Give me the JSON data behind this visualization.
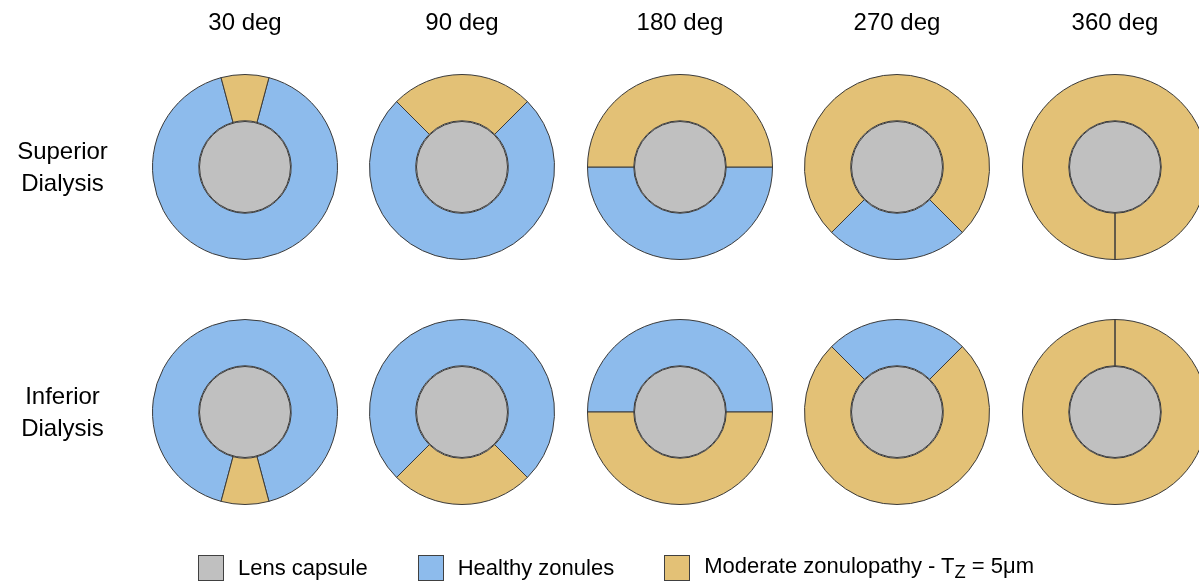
{
  "chart_data": [
    {
      "type": "donut",
      "title": "30 deg",
      "ylabel": "Superior Dialysis",
      "legend": "bottom",
      "annotations": [
        "Lens capsule"
      ],
      "categories": [
        "Healthy zonules",
        "Moderate zonulopathy - T$_{Z}$ = 5μm"
      ],
      "colors": [
        "#8dbbec",
        "#e3c176"
      ],
      "values": [
        91.67,
        8.33
      ]
    },
    {
      "type": "donut",
      "title": "90 deg",
      "categories": [
        null,
        null
      ],
      "colors": [
        "#8dbbec",
        "#e3c176"
      ],
      "values": [
        75,
        25
      ]
    },
    {
      "type": "donut",
      "title": "180 deg",
      "categories": [
        null,
        null
      ],
      "colors": [
        "#8dbbec",
        "#e3c176"
      ],
      "values": [
        50,
        50
      ]
    },
    {
      "type": "donut",
      "title": "270 deg",
      "categories": [
        null,
        null
      ],
      "colors": [
        "#8dbbec",
        "#e3c176"
      ],
      "values": [
        25,
        75
      ]
    },
    {
      "type": "donut",
      "title": "360 deg",
      "categories": [
        null,
        null
      ],
      "colors": [
        "#8dbbec",
        "#e3c176"
      ],
      "values": [
        0,
        100
      ]
    },
    {
      "type": "donut",
      "ylabel": "Inferior Dialysis",
      "categories": [
        null,
        null
      ],
      "colors": [
        "#8dbbec",
        "#e3c176"
      ],
      "values": [
        91.67,
        8.33
      ]
    },
    {
      "type": "donut",
      "categories": [
        null,
        null
      ],
      "colors": [
        "#8dbbec",
        "#e3c176"
      ],
      "values": [
        75,
        25
      ]
    },
    {
      "type": "donut",
      "categories": [
        null,
        null
      ],
      "colors": [
        "#8dbbec",
        "#e3c176"
      ],
      "values": [
        50,
        50
      ]
    },
    {
      "type": "donut",
      "categories": [
        null,
        null
      ],
      "colors": [
        "#8dbbec",
        "#e3c176"
      ],
      "values": [
        25,
        75
      ]
    },
    {
      "type": "donut",
      "categories": [
        null,
        null
      ],
      "colors": [
        "#8dbbec",
        "#e3c176"
      ],
      "values": [
        0,
        100
      ]
    }
  ]
}
